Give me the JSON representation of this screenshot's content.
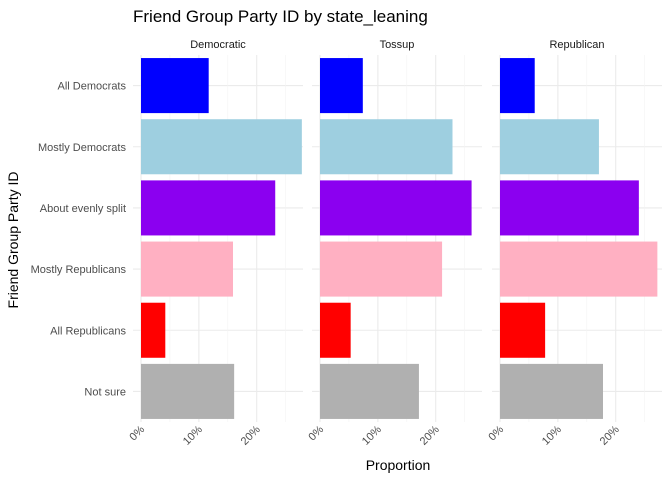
{
  "chart_data": {
    "type": "bar",
    "orientation": "horizontal",
    "title": "Friend Group Party ID by state_leaning",
    "xlabel": "Proportion",
    "ylabel": "Friend Group Party ID",
    "xlim": [
      0,
      0.28
    ],
    "x_ticks": [
      0,
      0.1,
      0.2
    ],
    "x_tick_labels": [
      "0%",
      "10%",
      "20%"
    ],
    "grid": true,
    "legend": "none",
    "categories": [
      "All Democrats",
      "Mostly Democrats",
      "About evenly split",
      "Mostly Republicans",
      "All Republicans",
      "Not sure"
    ],
    "colors": [
      "#0000ff",
      "#9ecfe0",
      "#8b00f0",
      "#ffb0c2",
      "#ff0000",
      "#b0b0b0"
    ],
    "facets": [
      {
        "name": "Democratic",
        "values": [
          0.117,
          0.278,
          0.232,
          0.159,
          0.042,
          0.161
        ]
      },
      {
        "name": "Tossup",
        "values": [
          0.074,
          0.229,
          0.262,
          0.211,
          0.053,
          0.171
        ]
      },
      {
        "name": "Republican",
        "values": [
          0.06,
          0.171,
          0.24,
          0.272,
          0.078,
          0.178
        ]
      }
    ]
  }
}
